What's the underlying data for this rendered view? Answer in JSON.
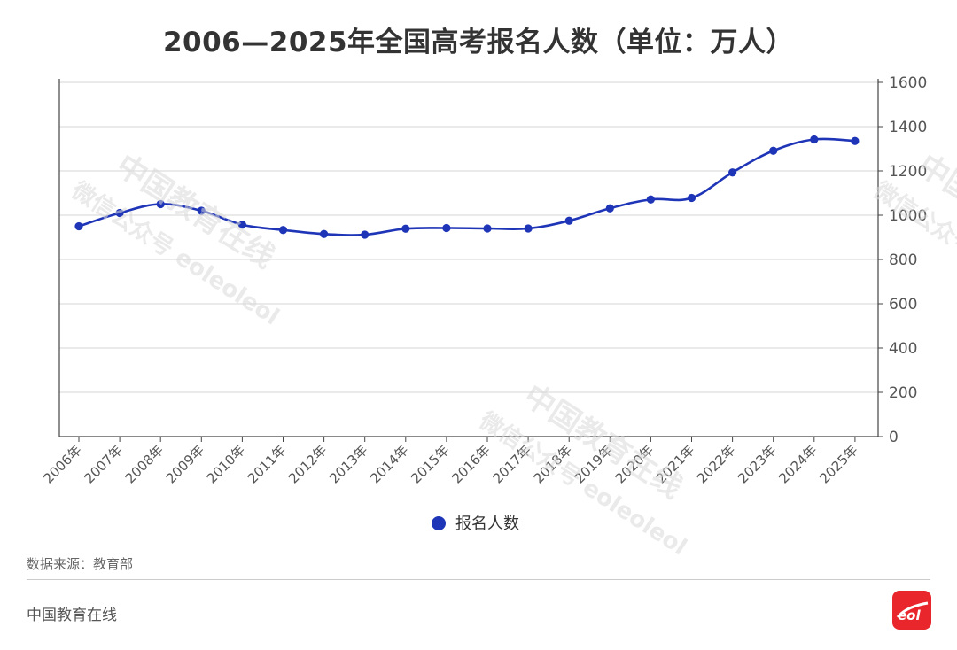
{
  "header": {
    "title": "2006—2025年全国高考报名人数（单位：万人）"
  },
  "chart_data": {
    "type": "line",
    "title": "2006—2025年全国高考报名人数（单位：万人）",
    "categories": [
      "2006年",
      "2007年",
      "2008年",
      "2009年",
      "2010年",
      "2011年",
      "2012年",
      "2013年",
      "2014年",
      "2015年",
      "2016年",
      "2017年",
      "2018年",
      "2019年",
      "2020年",
      "2021年",
      "2022年",
      "2023年",
      "2024年",
      "2025年"
    ],
    "series": [
      {
        "name": "报名人数",
        "values": [
          950,
          1010,
          1050,
          1020,
          957,
          933,
          915,
          912,
          939,
          942,
          940,
          940,
          975,
          1031,
          1071,
          1078,
          1193,
          1291,
          1342,
          1335
        ]
      }
    ],
    "yticks": [
      "0",
      "200",
      "400",
      "600",
      "800",
      "1000",
      "1200",
      "1400",
      "1600"
    ],
    "ylim": [
      0,
      1600
    ],
    "y_axis_side": "right",
    "grid": true,
    "legend_position": "bottom",
    "series_color": "#1f35b8"
  },
  "footer": {
    "source": "数据来源：教育部",
    "brand": "中国教育在线",
    "logo_text": "eol"
  },
  "watermark": {
    "line1": "中国教育在线",
    "line2": "微信公众号 eoleoleol"
  }
}
